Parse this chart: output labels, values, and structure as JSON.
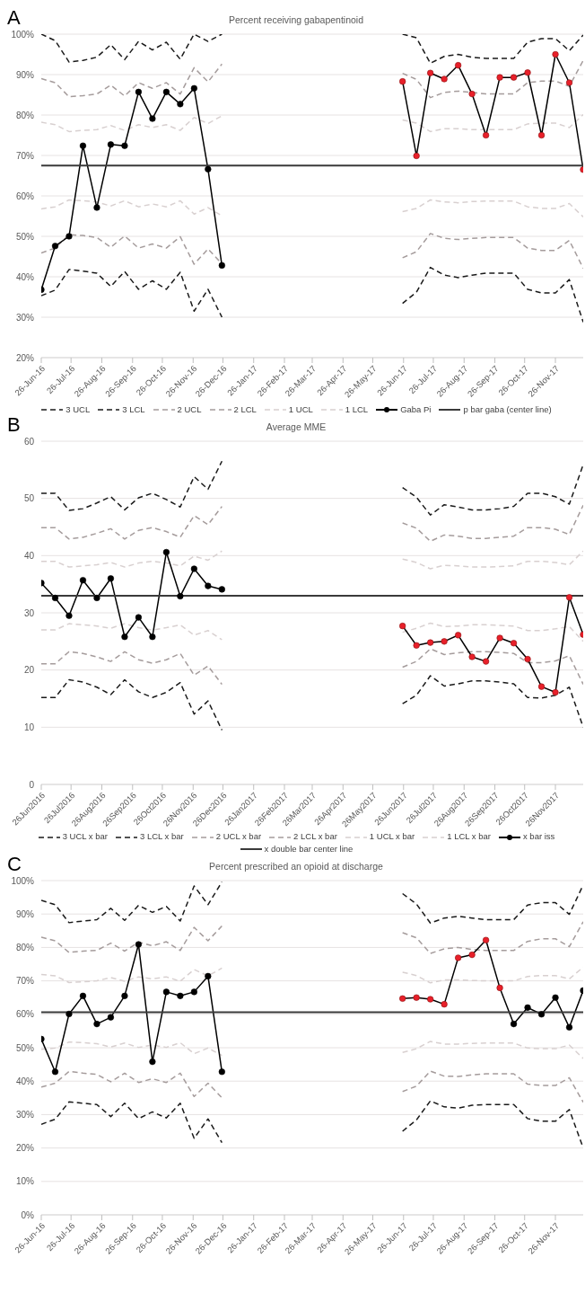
{
  "chart_data": [
    {
      "type": "line",
      "title": "Percent receiving gabapentinoid",
      "annotations": [
        "A"
      ],
      "x": [
        "2016-06-26",
        "2016-07-10",
        "2016-07-24",
        "2016-08-07",
        "2016-08-21",
        "2016-09-04",
        "2016-09-18",
        "2016-10-02",
        "2016-10-16",
        "2016-10-30",
        "2016-11-13",
        "2016-11-27",
        "2016-12-11",
        "2016-12-25",
        "2017-03-26",
        "2017-06-25",
        "2017-07-09",
        "2017-07-23",
        "2017-08-06",
        "2017-08-20",
        "2017-09-03",
        "2017-09-17",
        "2017-10-01",
        "2017-10-15",
        "2017-10-29",
        "2017-11-12",
        "2017-11-26",
        "2017-12-10",
        "2017-12-24"
      ],
      "xlim": [
        "2016-06-26",
        "2017-12-24"
      ],
      "xticks": [
        {
          "value": "2016-06-26",
          "label": "26-Jun-16"
        },
        {
          "value": "2016-07-26",
          "label": "26-Jul-16"
        },
        {
          "value": "2016-08-26",
          "label": "26-Aug-16"
        },
        {
          "value": "2016-09-26",
          "label": "26-Sep-16"
        },
        {
          "value": "2016-10-26",
          "label": "26-Oct-16"
        },
        {
          "value": "2016-11-26",
          "label": "26-Nov-16"
        },
        {
          "value": "2016-12-26",
          "label": "26-Dec-16"
        },
        {
          "value": "2017-01-26",
          "label": "26-Jan-17"
        },
        {
          "value": "2017-02-26",
          "label": "26-Feb-17"
        },
        {
          "value": "2017-03-26",
          "label": "26-Mar-17"
        },
        {
          "value": "2017-04-26",
          "label": "26-Apr-17"
        },
        {
          "value": "2017-05-26",
          "label": "26-May-17"
        },
        {
          "value": "2017-06-26",
          "label": "26-Jun-17"
        },
        {
          "value": "2017-07-26",
          "label": "26-Jul-17"
        },
        {
          "value": "2017-08-26",
          "label": "26-Aug-17"
        },
        {
          "value": "2017-09-26",
          "label": "26-Sep-17"
        },
        {
          "value": "2017-10-26",
          "label": "26-Oct-17"
        },
        {
          "value": "2017-11-26",
          "label": "26-Nov-17"
        }
      ],
      "ylim": [
        20,
        100
      ],
      "yticks": [
        {
          "value": 20,
          "label": "20%"
        },
        {
          "value": 30,
          "label": "30%"
        },
        {
          "value": 40,
          "label": "40%"
        },
        {
          "value": 50,
          "label": "50%"
        },
        {
          "value": 60,
          "label": "60%"
        },
        {
          "value": 70,
          "label": "70%"
        },
        {
          "value": 80,
          "label": "80%"
        },
        {
          "value": 90,
          "label": "90%"
        },
        {
          "value": 100,
          "label": "100%"
        }
      ],
      "grid": "y",
      "legend": "bottom",
      "series": [
        {
          "name": "3 UCL",
          "color": "#1a1a1a",
          "line_style": "dashed",
          "marker": "none",
          "values": [
            100,
            98.4,
            93.1,
            93.5,
            94.3,
            97.4,
            93.7,
            98.2,
            96.1,
            98.0,
            93.8,
            100,
            98.2,
            100,
            null,
            100,
            99.1,
            92.8,
            94.5,
            95.0,
            94.3,
            94.0,
            94.0,
            94.0,
            98.0,
            98.9,
            98.9,
            95.9,
            99.8
          ]
        },
        {
          "name": "3 LCL",
          "color": "#1a1a1a",
          "line_style": "dashed",
          "marker": "none",
          "values": [
            35.3,
            36.7,
            41.8,
            41.4,
            40.9,
            37.6,
            41.3,
            36.9,
            39.0,
            36.9,
            41.1,
            31.5,
            36.9,
            30.0,
            null,
            33.4,
            36.2,
            42.3,
            40.4,
            39.8,
            40.4,
            40.9,
            40.9,
            40.9,
            36.9,
            36.0,
            36.0,
            39.3,
            28.8
          ]
        },
        {
          "name": "2 UCL",
          "color": "#a59c9c",
          "line_style": "dashed",
          "marker": "none",
          "values": [
            89.0,
            88.0,
            84.5,
            84.8,
            85.2,
            87.4,
            84.7,
            88.0,
            86.6,
            88.0,
            85.2,
            91.7,
            88.2,
            92.6,
            null,
            90.3,
            88.8,
            84.3,
            85.6,
            85.9,
            85.6,
            85.2,
            85.2,
            85.2,
            88.0,
            88.4,
            88.4,
            87.1,
            93.5
          ]
        },
        {
          "name": "2 LCL",
          "color": "#a59c9c",
          "line_style": "dashed",
          "marker": "none",
          "values": [
            45.9,
            47.1,
            50.4,
            50.2,
            49.7,
            47.3,
            50.1,
            47.1,
            48.1,
            47.1,
            49.9,
            43.1,
            46.9,
            43.2,
            null,
            44.7,
            46.2,
            50.7,
            49.5,
            49.2,
            49.5,
            49.7,
            49.7,
            49.7,
            47.1,
            46.5,
            46.5,
            49.0,
            42.1
          ]
        },
        {
          "name": "1 UCL",
          "color": "#d8d0d0",
          "line_style": "dashed",
          "marker": "none",
          "values": [
            78.2,
            77.6,
            75.9,
            76.2,
            76.4,
            77.4,
            76.2,
            77.6,
            76.9,
            77.6,
            76.2,
            79.4,
            77.9,
            79.8,
            null,
            78.8,
            78.0,
            75.9,
            76.6,
            76.6,
            76.4,
            76.4,
            76.4,
            76.4,
            77.8,
            78.0,
            78.0,
            76.9,
            80.1
          ]
        },
        {
          "name": "1 LCL",
          "color": "#d8d0d0",
          "line_style": "dashed",
          "marker": "none",
          "values": [
            56.8,
            57.3,
            59.0,
            58.8,
            58.5,
            57.5,
            58.8,
            57.3,
            58.0,
            57.3,
            58.8,
            55.5,
            57.1,
            55.1,
            null,
            56.1,
            56.9,
            59.0,
            58.5,
            58.3,
            58.6,
            58.7,
            58.7,
            58.7,
            57.3,
            56.9,
            56.9,
            58.1,
            54.8
          ]
        },
        {
          "name": "Gaba Pi",
          "color": "#000000",
          "line_style": "solid",
          "marker": "circle",
          "colors": [
            "#000000",
            "#000000",
            "#000000",
            "#000000",
            "#000000",
            "#000000",
            "#000000",
            "#000000",
            "#000000",
            "#000000",
            "#000000",
            "#000000",
            "#000000",
            "#000000",
            null,
            "#e8202a",
            "#e8202a",
            "#e8202a",
            "#e8202a",
            "#e8202a",
            "#e8202a",
            "#e8202a",
            "#e8202a",
            "#e8202a",
            "#e8202a",
            "#e8202a",
            "#e8202a",
            "#e8202a",
            "#e8202a"
          ],
          "values": [
            36.8,
            47.6,
            50.0,
            72.4,
            57.1,
            72.7,
            72.4,
            85.7,
            79.1,
            85.7,
            82.7,
            86.6,
            66.6,
            42.8,
            null,
            88.3,
            69.9,
            90.4,
            88.9,
            92.3,
            85.2,
            75.0,
            89.3,
            89.3,
            90.5,
            75.0,
            95.0,
            88.0,
            66.5
          ]
        },
        {
          "name": "p bar gaba (center line)",
          "color": "#3a3a3a",
          "line_style": "solid",
          "marker": "none",
          "x": [
            "2016-06-26",
            "2017-12-24"
          ],
          "values": [
            67.5,
            67.5
          ]
        }
      ]
    },
    {
      "type": "line",
      "title": "Average MME",
      "annotations": [
        "B"
      ],
      "x": [
        "2016-06-26",
        "2016-07-10",
        "2016-07-24",
        "2016-08-07",
        "2016-08-21",
        "2016-09-04",
        "2016-09-18",
        "2016-10-02",
        "2016-10-16",
        "2016-10-30",
        "2016-11-13",
        "2016-11-27",
        "2016-12-11",
        "2016-12-25",
        "2017-03-26",
        "2017-06-25",
        "2017-07-09",
        "2017-07-23",
        "2017-08-06",
        "2017-08-20",
        "2017-09-03",
        "2017-09-17",
        "2017-10-01",
        "2017-10-15",
        "2017-10-29",
        "2017-11-12",
        "2017-11-26",
        "2017-12-10",
        "2017-12-24"
      ],
      "xlim": [
        "2016-06-26",
        "2017-12-24"
      ],
      "xticks": [
        {
          "value": "2016-06-26",
          "label": "26Jun2016"
        },
        {
          "value": "2016-07-26",
          "label": "26Jul2016"
        },
        {
          "value": "2016-08-26",
          "label": "26Aug2016"
        },
        {
          "value": "2016-09-26",
          "label": "26Sep2016"
        },
        {
          "value": "2016-10-26",
          "label": "26Oct2016"
        },
        {
          "value": "2016-11-26",
          "label": "26Nov2016"
        },
        {
          "value": "2016-12-26",
          "label": "26Dec2016"
        },
        {
          "value": "2017-01-26",
          "label": "26Jan2017"
        },
        {
          "value": "2017-02-26",
          "label": "26Feb2017"
        },
        {
          "value": "2017-03-26",
          "label": "26Mar2017"
        },
        {
          "value": "2017-04-26",
          "label": "26Apr2017"
        },
        {
          "value": "2017-05-26",
          "label": "26May2017"
        },
        {
          "value": "2017-06-26",
          "label": "26Jun2017"
        },
        {
          "value": "2017-07-26",
          "label": "26Jul2017"
        },
        {
          "value": "2017-08-26",
          "label": "26Aug2017"
        },
        {
          "value": "2017-09-26",
          "label": "26Sep2017"
        },
        {
          "value": "2017-10-26",
          "label": "26Oct2017"
        },
        {
          "value": "2017-11-26",
          "label": "26Nov2017"
        }
      ],
      "ylim": [
        0,
        60
      ],
      "yticks": [
        0,
        10,
        20,
        30,
        40,
        50,
        60
      ],
      "grid": "y",
      "legend": "bottom",
      "series": [
        {
          "name": "3 UCL x bar",
          "color": "#1a1a1a",
          "line_style": "dashed",
          "marker": "none",
          "values": [
            50.9,
            50.9,
            47.9,
            48.2,
            49.2,
            50.3,
            48.0,
            50.1,
            50.9,
            49.8,
            48.5,
            53.8,
            51.6,
            56.5,
            null,
            51.9,
            50.2,
            47.1,
            48.9,
            48.5,
            48.0,
            48.0,
            48.2,
            48.6,
            50.9,
            50.9,
            50.3,
            49.0,
            55.9
          ]
        },
        {
          "name": "3 LCL x bar",
          "color": "#1a1a1a",
          "line_style": "dashed",
          "marker": "none",
          "values": [
            15.2,
            15.2,
            18.3,
            17.9,
            17.0,
            15.7,
            18.3,
            16.2,
            15.2,
            16.1,
            17.8,
            12.3,
            14.6,
            9.5,
            null,
            14.1,
            15.6,
            19.0,
            17.2,
            17.6,
            18.1,
            18.1,
            17.9,
            17.6,
            15.2,
            15.1,
            15.6,
            17.0,
            10.0
          ]
        },
        {
          "name": "2 UCL x bar",
          "color": "#a59c9c",
          "line_style": "dashed",
          "marker": "none",
          "values": [
            44.9,
            44.9,
            42.9,
            43.2,
            43.9,
            44.7,
            42.9,
            44.4,
            44.9,
            44.2,
            43.2,
            47.0,
            45.4,
            48.6,
            null,
            45.7,
            44.8,
            42.5,
            43.6,
            43.4,
            43.0,
            43.0,
            43.2,
            43.4,
            44.9,
            44.9,
            44.6,
            43.7,
            48.8
          ]
        },
        {
          "name": "2 LCL x bar",
          "color": "#a59c9c",
          "line_style": "dashed",
          "marker": "none",
          "values": [
            21.1,
            21.1,
            23.2,
            22.9,
            22.3,
            21.5,
            23.2,
            21.8,
            21.2,
            21.8,
            22.9,
            19.1,
            20.7,
            17.5,
            null,
            20.5,
            21.5,
            23.7,
            22.7,
            23.0,
            23.2,
            23.2,
            23.1,
            22.9,
            21.3,
            21.3,
            21.6,
            22.5,
            17.5
          ]
        },
        {
          "name": "1 UCL x bar",
          "color": "#d8d0d0",
          "line_style": "dashed",
          "marker": "none",
          "values": [
            39.0,
            39.0,
            38.0,
            38.2,
            38.4,
            38.8,
            38.0,
            38.7,
            39.0,
            38.7,
            38.2,
            39.9,
            39.2,
            40.8,
            null,
            39.4,
            38.8,
            37.7,
            38.3,
            38.2,
            38.0,
            38.0,
            38.1,
            38.2,
            39.0,
            39.0,
            38.8,
            38.4,
            40.8
          ]
        },
        {
          "name": "1 LCL x bar",
          "color": "#d8d0d0",
          "line_style": "dashed",
          "marker": "none",
          "values": [
            27.0,
            27.0,
            28.1,
            27.9,
            27.7,
            27.3,
            28.1,
            27.4,
            27.0,
            27.4,
            27.9,
            26.1,
            26.9,
            25.3,
            null,
            26.6,
            27.3,
            28.2,
            27.6,
            27.7,
            27.9,
            27.9,
            27.8,
            27.7,
            26.9,
            26.9,
            27.2,
            27.6,
            25.0
          ]
        },
        {
          "name": "x bar iss",
          "color": "#000000",
          "line_style": "solid",
          "marker": "circle",
          "colors": [
            "#000000",
            "#000000",
            "#000000",
            "#000000",
            "#000000",
            "#000000",
            "#000000",
            "#000000",
            "#000000",
            "#000000",
            "#000000",
            "#000000",
            "#000000",
            "#000000",
            null,
            "#e8202a",
            "#e8202a",
            "#e8202a",
            "#e8202a",
            "#e8202a",
            "#e8202a",
            "#e8202a",
            "#e8202a",
            "#e8202a",
            "#e8202a",
            "#e8202a",
            "#e8202a",
            "#e8202a",
            "#e8202a"
          ],
          "values": [
            35.2,
            32.6,
            29.5,
            35.7,
            32.6,
            36.0,
            25.8,
            29.2,
            25.8,
            40.6,
            32.9,
            37.7,
            34.7,
            34.1,
            null,
            27.7,
            24.3,
            24.8,
            25.0,
            26.1,
            22.3,
            21.5,
            25.6,
            24.7,
            21.9,
            17.1,
            16.1,
            32.7,
            26.2
          ]
        },
        {
          "name": "x double bar center line",
          "color": "#3a3a3a",
          "line_style": "solid",
          "marker": "none",
          "x": [
            "2016-06-26",
            "2017-12-24"
          ],
          "values": [
            33.0,
            33.0
          ]
        }
      ]
    },
    {
      "type": "line",
      "title": "Percent prescribed an opioid at discharge",
      "annotations": [
        "C"
      ],
      "x": [
        "2016-06-26",
        "2016-07-10",
        "2016-07-24",
        "2016-08-07",
        "2016-08-21",
        "2016-09-04",
        "2016-09-18",
        "2016-10-02",
        "2016-10-16",
        "2016-10-30",
        "2016-11-13",
        "2016-11-27",
        "2016-12-11",
        "2016-12-25",
        "2017-03-26",
        "2017-06-25",
        "2017-07-09",
        "2017-07-23",
        "2017-08-06",
        "2017-08-20",
        "2017-09-03",
        "2017-09-17",
        "2017-10-01",
        "2017-10-15",
        "2017-10-29",
        "2017-11-12",
        "2017-11-26",
        "2017-12-10",
        "2017-12-24"
      ],
      "xlim": [
        "2016-06-26",
        "2017-12-24"
      ],
      "xticks": [
        {
          "value": "2016-06-26",
          "label": "26-Jun-16"
        },
        {
          "value": "2016-07-26",
          "label": "26-Jul-16"
        },
        {
          "value": "2016-08-26",
          "label": "26-Aug-16"
        },
        {
          "value": "2016-09-26",
          "label": "26-Sep-16"
        },
        {
          "value": "2016-10-26",
          "label": "26-Oct-16"
        },
        {
          "value": "2016-11-26",
          "label": "26-Nov-16"
        },
        {
          "value": "2016-12-26",
          "label": "26-Dec-16"
        },
        {
          "value": "2017-01-26",
          "label": "26-Jan-17"
        },
        {
          "value": "2017-02-26",
          "label": "26-Feb-17"
        },
        {
          "value": "2017-03-26",
          "label": "26-Mar-17"
        },
        {
          "value": "2017-04-26",
          "label": "26-Apr-17"
        },
        {
          "value": "2017-05-26",
          "label": "26-May-17"
        },
        {
          "value": "2017-06-26",
          "label": "26-Jun-17"
        },
        {
          "value": "2017-07-26",
          "label": "26-Jul-17"
        },
        {
          "value": "2017-08-26",
          "label": "26-Aug-17"
        },
        {
          "value": "2017-09-26",
          "label": "26-Sep-17"
        },
        {
          "value": "2017-10-26",
          "label": "26-Oct-17"
        },
        {
          "value": "2017-11-26",
          "label": "26-Nov-17"
        }
      ],
      "ylim": [
        0,
        100
      ],
      "yticks": [
        {
          "value": 0,
          "label": "0%"
        },
        {
          "value": 10,
          "label": "10%"
        },
        {
          "value": 20,
          "label": "20%"
        },
        {
          "value": 30,
          "label": "30%"
        },
        {
          "value": 40,
          "label": "40%"
        },
        {
          "value": 50,
          "label": "50%"
        },
        {
          "value": 60,
          "label": "60%"
        },
        {
          "value": 70,
          "label": "70%"
        },
        {
          "value": 80,
          "label": "80%"
        },
        {
          "value": 90,
          "label": "90%"
        },
        {
          "value": 100,
          "label": "100%"
        }
      ],
      "grid": "y",
      "series": [
        {
          "color": "#1a1a1a",
          "line_style": "dashed",
          "marker": "none",
          "values": [
            94.1,
            92.8,
            87.4,
            87.9,
            88.3,
            91.7,
            88.1,
            92.6,
            90.5,
            92.3,
            87.9,
            98.4,
            92.8,
            99.6,
            null,
            96.1,
            93.0,
            87.3,
            88.8,
            89.3,
            88.8,
            88.3,
            88.3,
            88.3,
            92.7,
            93.4,
            93.4,
            89.9,
            98.7
          ]
        },
        {
          "color": "#1a1a1a",
          "line_style": "dashed",
          "marker": "none",
          "values": [
            27.1,
            28.6,
            33.8,
            33.4,
            33.0,
            29.4,
            33.4,
            28.8,
            30.8,
            29.0,
            33.4,
            22.9,
            28.7,
            21.6,
            null,
            25.0,
            28.4,
            34.1,
            32.3,
            31.9,
            32.8,
            33.0,
            33.0,
            33.0,
            28.8,
            28.0,
            28.0,
            31.5,
            20.0
          ]
        },
        {
          "color": "#a59c9c",
          "line_style": "dashed",
          "marker": "none",
          "values": [
            83.1,
            82.0,
            78.5,
            78.9,
            79.1,
            81.3,
            78.9,
            81.6,
            80.5,
            81.7,
            79.1,
            86.0,
            82.0,
            86.4,
            null,
            84.4,
            82.9,
            78.2,
            79.6,
            80.0,
            79.4,
            79.1,
            79.1,
            79.1,
            81.8,
            82.6,
            82.6,
            80.2,
            87.7
          ]
        },
        {
          "color": "#a59c9c",
          "line_style": "dashed",
          "marker": "none",
          "values": [
            38.2,
            39.4,
            42.9,
            42.4,
            42.0,
            39.8,
            42.4,
            39.6,
            40.7,
            39.6,
            42.4,
            35.4,
            39.4,
            35.0,
            null,
            36.9,
            38.5,
            43.0,
            41.5,
            41.4,
            41.9,
            42.2,
            42.2,
            42.2,
            39.1,
            38.7,
            38.7,
            41.0,
            33.7
          ]
        },
        {
          "color": "#d8d0d0",
          "line_style": "dashed",
          "marker": "none",
          "values": [
            71.9,
            71.5,
            69.5,
            69.7,
            70.0,
            71.0,
            69.9,
            71.2,
            70.6,
            71.2,
            69.9,
            73.4,
            71.5,
            73.8,
            null,
            72.6,
            71.6,
            69.4,
            70.3,
            70.3,
            70.1,
            70.0,
            70.0,
            70.0,
            71.3,
            71.6,
            71.6,
            70.6,
            74.1
          ]
        },
        {
          "color": "#d8d0d0",
          "line_style": "dashed",
          "marker": "none",
          "values": [
            49.5,
            49.9,
            51.7,
            51.5,
            51.2,
            50.2,
            51.4,
            50.1,
            50.8,
            50.1,
            51.5,
            48.2,
            49.9,
            47.7,
            null,
            48.6,
            49.7,
            51.9,
            51.1,
            51.1,
            51.3,
            51.4,
            51.4,
            51.4,
            49.9,
            49.7,
            49.7,
            50.8,
            46.8
          ]
        },
        {
          "color": "#000000",
          "line_style": "solid",
          "marker": "circle",
          "colors": [
            "#000000",
            "#000000",
            "#000000",
            "#000000",
            "#000000",
            "#000000",
            "#000000",
            "#000000",
            "#000000",
            "#000000",
            "#000000",
            "#000000",
            "#000000",
            "#000000",
            null,
            "#e8202a",
            "#e8202a",
            "#e8202a",
            "#e8202a",
            "#e8202a",
            "#e8202a",
            "#e8202a",
            "#e8202a",
            "#000000",
            "#000000",
            "#000000",
            "#000000",
            "#000000",
            "#000000"
          ],
          "values": [
            52.6,
            42.8,
            60.1,
            65.5,
            57.1,
            59.1,
            65.5,
            80.9,
            45.8,
            66.7,
            65.5,
            66.7,
            71.4,
            42.8,
            null,
            64.7,
            65.0,
            64.5,
            63.0,
            76.9,
            77.8,
            82.2,
            67.9,
            57.1,
            62.0,
            60.0,
            65.0,
            56.1,
            67.1
          ]
        },
        {
          "color": "#3a3a3a",
          "line_style": "solid",
          "marker": "none",
          "x": [
            "2016-06-26",
            "2017-12-24"
          ],
          "values": [
            60.6,
            60.6
          ]
        }
      ]
    }
  ]
}
